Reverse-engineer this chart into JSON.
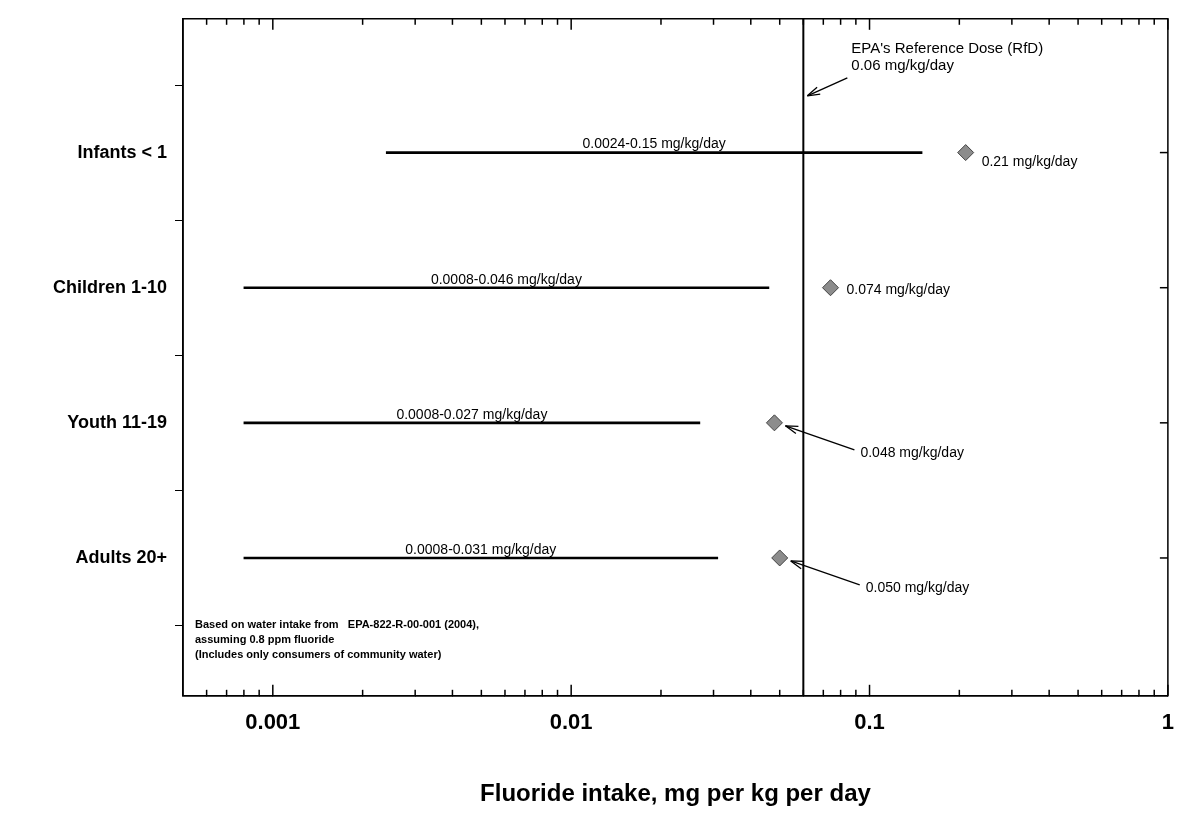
{
  "chart_data": {
    "type": "bar",
    "orientation": "horizontal",
    "log": "x",
    "grid": false,
    "legend": false,
    "xlabel": "Fluoride intake, mg per kg per day",
    "categories": [
      "Infants < 1",
      "Children 1-10",
      "Youth 11-19",
      "Adults 20+"
    ],
    "xlim": [
      0.0005,
      1
    ],
    "xticks": [
      {
        "value": 0.0006,
        "label": null
      },
      {
        "value": 0.0007,
        "label": null
      },
      {
        "value": 0.0008,
        "label": null
      },
      {
        "value": 0.0009,
        "label": null
      },
      0.001,
      {
        "value": 0.002,
        "label": null
      },
      {
        "value": 0.003,
        "label": null
      },
      {
        "value": 0.004,
        "label": null
      },
      {
        "value": 0.005,
        "label": null
      },
      {
        "value": 0.006,
        "label": null
      },
      {
        "value": 0.007,
        "label": null
      },
      {
        "value": 0.008,
        "label": null
      },
      {
        "value": 0.009,
        "label": null
      },
      0.01,
      {
        "value": 0.02,
        "label": null
      },
      {
        "value": 0.03,
        "label": null
      },
      {
        "value": 0.04,
        "label": null
      },
      {
        "value": 0.05,
        "label": null
      },
      {
        "value": 0.06,
        "label": null
      },
      {
        "value": 0.07,
        "label": null
      },
      {
        "value": 0.08,
        "label": null
      },
      {
        "value": 0.09,
        "label": null
      },
      0.1,
      {
        "value": 0.2,
        "label": null
      },
      {
        "value": 0.3,
        "label": null
      },
      {
        "value": 0.4,
        "label": null
      },
      {
        "value": 0.5,
        "label": null
      },
      {
        "value": 0.6,
        "label": null
      },
      {
        "value": 0.7,
        "label": null
      },
      {
        "value": 0.8,
        "label": null
      },
      {
        "value": 0.9,
        "label": null
      },
      1
    ],
    "series": [
      {
        "color": "#000000",
        "base": [
          0.0024,
          0.0008,
          0.0008,
          0.0008
        ],
        "values": [
          0.1476,
          0.0452,
          0.0262,
          0.0302
        ],
        "value_labels": [
          "0.0024-0.15 mg/kg/day",
          "0.0008-0.046 mg/kg/day",
          "0.0008-0.027 mg/kg/day",
          "0.0008-0.031 mg/kg/day"
        ]
      },
      {
        "type": "scatter",
        "marker": "diamond",
        "color": "#8c8c8c",
        "values": [
          0.21,
          0.074,
          0.048,
          0.05
        ],
        "value_labels": [
          "0.21 mg/kg/day",
          "0.074 mg/kg/day",
          "0.048 mg/kg/day",
          "0.050 mg/kg/day"
        ]
      }
    ],
    "ref_lines": [
      {
        "axis": "x",
        "value": 0.06,
        "label": "EPA's Reference Dose (RfD)\n0.06 mg/kg/day",
        "color": "#000000"
      }
    ],
    "annotations": [
      "Based on water intake from   EPA-822-R-00-001 (2004),",
      "assuming 0.8 ppm fluoride",
      "(Includes only consumers of community water)"
    ]
  }
}
